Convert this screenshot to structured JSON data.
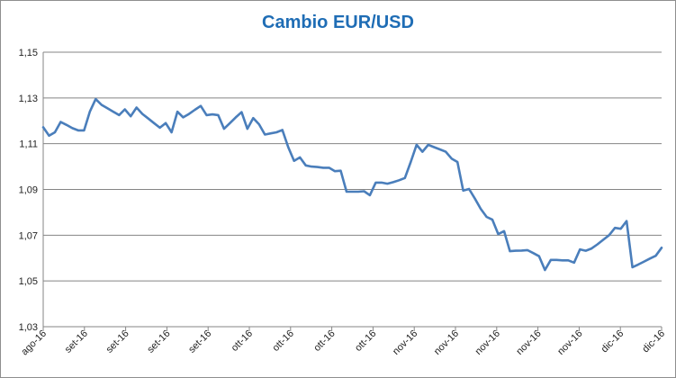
{
  "chart_data": {
    "type": "line",
    "title": "Cambio EUR/USD",
    "xlabel": "",
    "ylabel": "",
    "ylim": [
      1.03,
      1.15
    ],
    "yticks": [
      "1,03",
      "1,05",
      "1,07",
      "1,09",
      "1,11",
      "1,13",
      "1,15"
    ],
    "ytick_values": [
      1.03,
      1.05,
      1.07,
      1.09,
      1.11,
      1.13,
      1.15
    ],
    "xticks": [
      "ago-16",
      "set-16",
      "set-16",
      "set-16",
      "set-16",
      "ott-16",
      "ott-16",
      "ott-16",
      "ott-16",
      "nov-16",
      "nov-16",
      "nov-16",
      "nov-16",
      "nov-16",
      "dic-16",
      "dic-16"
    ],
    "grid": true,
    "legend": "none",
    "line_color": "#4a7ebb",
    "series": [
      {
        "values": [
          1.1172,
          1.1135,
          1.115,
          1.1195,
          1.1182,
          1.1168,
          1.1158,
          1.1158,
          1.124,
          1.1295,
          1.127,
          1.1255,
          1.124,
          1.1225,
          1.125,
          1.122,
          1.1258,
          1.123,
          1.121,
          1.119,
          1.117,
          1.119,
          1.115,
          1.124,
          1.1215,
          1.123,
          1.1248,
          1.1265,
          1.1225,
          1.1228,
          1.1225,
          1.1165,
          1.119,
          1.1215,
          1.1238,
          1.1165,
          1.1212,
          1.1185,
          1.114,
          1.1145,
          1.115,
          1.116,
          1.1085,
          1.1025,
          1.104,
          1.1005,
          1.1,
          1.0998,
          1.0995,
          1.0995,
          1.098,
          1.0982,
          1.089,
          1.089,
          1.089,
          1.0892,
          1.0875,
          1.093,
          1.093,
          1.0925,
          1.0932,
          1.094,
          1.095,
          1.102,
          1.1095,
          1.1065,
          1.1095,
          1.1085,
          1.1075,
          1.1065,
          1.1035,
          1.102,
          1.0895,
          1.0902,
          1.086,
          1.0815,
          1.078,
          1.0768,
          1.0705,
          1.0718,
          1.063,
          1.0632,
          1.0633,
          1.0635,
          1.0622,
          1.0608,
          1.0548,
          1.0592,
          1.0592,
          1.059,
          1.059,
          1.058,
          1.0638,
          1.0632,
          1.0642,
          1.066,
          1.068,
          1.07,
          1.0732,
          1.0728,
          1.0762,
          1.056,
          1.0572,
          1.0585,
          1.0598,
          1.061,
          1.0645
        ]
      }
    ]
  }
}
